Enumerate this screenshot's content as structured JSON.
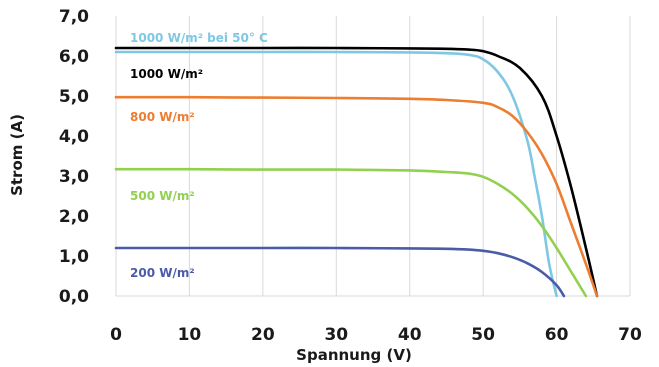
{
  "chart_data": {
    "type": "line",
    "title": "",
    "xlabel": "Spannung (V)",
    "ylabel": "Strom (A)",
    "xlim": [
      0,
      70
    ],
    "ylim": [
      0,
      7
    ],
    "xticks": [
      "0",
      "10",
      "20",
      "30",
      "40",
      "50",
      "60",
      "70"
    ],
    "yticks": [
      "0,0",
      "1,0",
      "2,0",
      "3,0",
      "4,0",
      "5,0",
      "6,0",
      "7,0"
    ],
    "grid": "vertical",
    "series": [
      {
        "name": "1000 W/m² bei 50° C",
        "color": "#7ec8e3",
        "x": [
          0,
          10,
          20,
          30,
          40,
          45,
          48,
          50,
          52,
          54,
          56,
          57,
          58,
          59,
          60
        ],
        "y": [
          6.1,
          6.1,
          6.1,
          6.1,
          6.09,
          6.07,
          6.03,
          5.92,
          5.6,
          5.0,
          3.9,
          3.0,
          2.0,
          0.8,
          0.0
        ]
      },
      {
        "name": "1000 W/m²",
        "color": "#000000",
        "x": [
          0,
          10,
          20,
          30,
          40,
          45,
          48,
          50,
          52,
          55,
          58,
          60,
          62,
          64,
          65.5
        ],
        "y": [
          6.2,
          6.2,
          6.2,
          6.2,
          6.19,
          6.18,
          6.16,
          6.12,
          6.0,
          5.7,
          5.0,
          4.0,
          2.7,
          1.2,
          0.0
        ]
      },
      {
        "name": "800 W/m²",
        "color": "#ed7d31",
        "x": [
          0,
          10,
          20,
          30,
          40,
          45,
          50,
          52,
          54,
          56,
          58,
          60,
          62,
          64,
          65.5
        ],
        "y": [
          4.97,
          4.97,
          4.96,
          4.95,
          4.93,
          4.9,
          4.83,
          4.72,
          4.5,
          4.1,
          3.55,
          2.8,
          1.8,
          0.8,
          0.0
        ]
      },
      {
        "name": "500 W/m²",
        "color": "#92d050",
        "x": [
          0,
          10,
          20,
          30,
          40,
          45,
          48,
          50,
          52,
          54,
          56,
          58,
          60,
          62,
          64
        ],
        "y": [
          3.17,
          3.17,
          3.16,
          3.16,
          3.14,
          3.1,
          3.06,
          2.98,
          2.8,
          2.55,
          2.2,
          1.75,
          1.2,
          0.6,
          0.0
        ]
      },
      {
        "name": "200 W/m²",
        "color": "#4a5ba8",
        "x": [
          0,
          10,
          20,
          30,
          40,
          45,
          48,
          50,
          52,
          54,
          56,
          58,
          60,
          61
        ],
        "y": [
          1.2,
          1.2,
          1.2,
          1.2,
          1.19,
          1.18,
          1.16,
          1.13,
          1.07,
          0.97,
          0.82,
          0.6,
          0.27,
          0.0
        ]
      }
    ]
  }
}
